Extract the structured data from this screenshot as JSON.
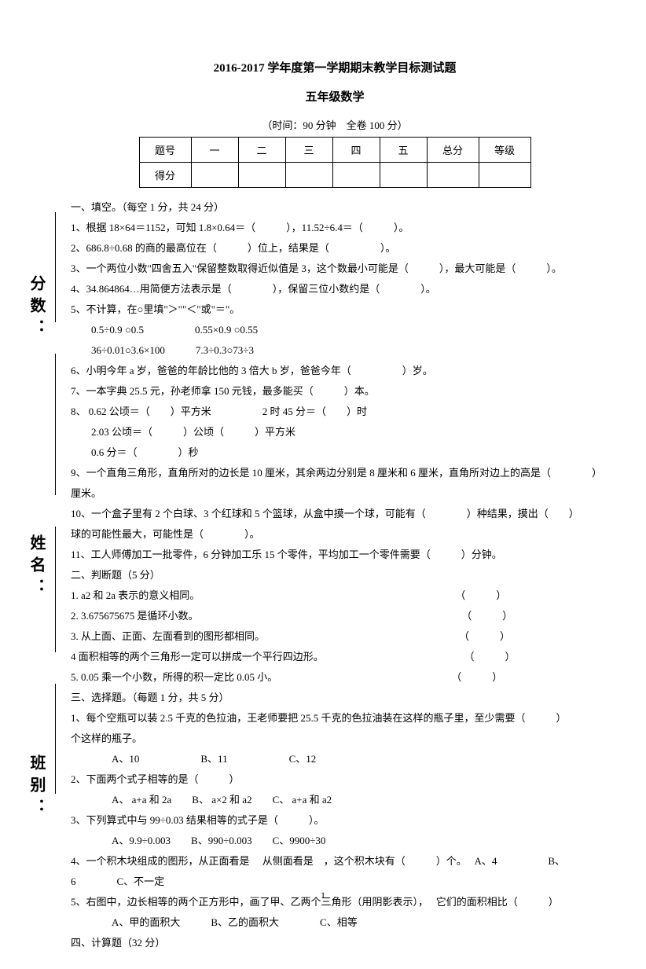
{
  "title1": "2016-2017 学年度第一学期期末教学目标测试题",
  "title2": "五年级数学",
  "meta": "（时间：90 分钟　全卷 100 分）",
  "table": {
    "row1": [
      "题号",
      "一",
      "二",
      "三",
      "四",
      "五",
      "总分",
      "等级"
    ],
    "row2_label": "得分"
  },
  "vlabels": {
    "score": "分数：",
    "name": "姓名：",
    "class": "班别："
  },
  "s1": {
    "head": "一、填空。（每空 1 分，共 24 分）",
    "q1": "1、根据 18×64＝1152，可知 1.8×0.64＝（　　　），11.52÷6.4＝（　　　）。",
    "q2": "2、686.8÷0.68 的商的最高位在（　　　）位上，结果是（　　　　　）。",
    "q3": "3、一个两位小数\"四舍五入\"保留整数取得近似值是 3，这个数最小可能是（　　　），最大可能是（　　　）。",
    "q4": "4、34.864864…用简便方法表示是（　　　　），保留三位小数约是（　　　　）。",
    "q5": "5、不计算，在○里填\"＞\"\"＜\"或\"＝\"。",
    "q5a": "0.5÷0.9  ○0.5　　　　　0.55×0.9  ○0.55",
    "q5b": "36÷0.01○3.6×100　　　7.3÷0.3○73÷3",
    "q6": "6、小明今年 a 岁，爸爸的年龄比他的 3 倍大 b 岁，爸爸今年（　　　　　）岁。",
    "q7": "7、一本字典 25.5 元，孙老师拿 150 元钱，最多能买（　　　）本。",
    "q8": "8、 0.62 公顷＝（　　）平方米　　　　　2 时 45 分＝（　　）时",
    "q8a": "2.03 公顷＝（　　　）公顷（　　　）平方米",
    "q8b": "0.6 分＝（　　　　）秒",
    "q9a": "9、一个直角三角形，直角所对的边长是 10 厘米，其余两边分别是 8 厘米和 6 厘米，直角所对边上的高是（　　　　）",
    "q9b": "厘米。",
    "q10a": "10、一个盒子里有 2 个白球、3 个红球和 5 个篮球，从盒中摸一个球，可能有（　　　　）种结果，摸出（　　）",
    "q10b": "球的可能性最大，可能性是（　　　　）。",
    "q11": "11、工人师傅加工一批零件，6 分钟加工乐 15 个零件，平均加工一个零件需要（　　　）分钟。"
  },
  "s2": {
    "head": "二、判断题（5 分）",
    "q1": "1. a2 和 2a 表示的意义相同。　　　　　　　　　　　　　　　　　　　　　　　　　　（　　　）",
    "q2": "2. 3.675675675 是循环小数。　　　　　　　　　　　　　　　　　　　　　　　　　　 （　　　）",
    "q3": "3. 从上面、正面、左面看到的图形都相同。　　　　　　　　　　　　　　　　　　　　（　　　）",
    "q4": "4 面积相等的两个三角形一定可以拼成一个平行四边形。　　　　　　　　　　　　　　 （　　　）",
    "q5": "5. 0.05 乘一个小数，所得的积一定比 0.05 小。　　　　　　　　　　　　　　　　　　（　　　）"
  },
  "s3": {
    "head": "三、选择题。（每题 1 分，共 5 分）",
    "q1a": "1、每个空瓶可以装 2.5 千克的色拉油，王老师要把 25.5 千克的色拉油装在这样的瓶子里，至少需要（　　　）",
    "q1b": "个这样的瓶子。",
    "q1c": "A、10　　　　　　B、11　　　　　　C、12",
    "q2a": "2、下面两个式子相等的是（　　　）",
    "q2b": "A、 a+a 和 2a　　B、 a×2 和 a2　　C、 a+a 和 a2",
    "q3a": "3、下列算式中与 99÷0.03 结果相等的式子是（　　　）。",
    "q3b": "A、9.9÷0.003　　B、990÷0.003　　C、9900÷30",
    "q4a": "4、一个积木块组成的图形，从正面看是　 从侧面看是　，这个积木块有（　　　）个。　 A、4　　　　　B、",
    "q4b": "6　　　　C、不一定",
    "q5a": "5、右图中，边长相等的两个正方形中，画了甲、乙两个三角形（用阴影表示），　 它们的面积相比（　　　）",
    "q5b": "A、甲的面积大　　　B、乙的面积大　　　　C、相等"
  },
  "s4": {
    "head": "四、计算题（32 分）"
  },
  "pagenum": "1"
}
